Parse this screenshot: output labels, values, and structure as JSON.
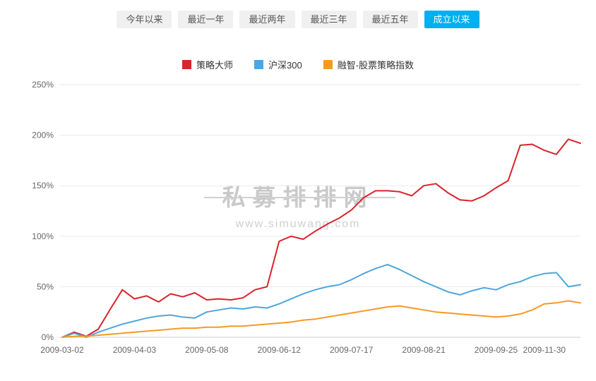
{
  "tabs": {
    "items": [
      {
        "key": "ytd",
        "label": "今年以来",
        "active": false
      },
      {
        "key": "1y",
        "label": "最近一年",
        "active": false
      },
      {
        "key": "2y",
        "label": "最近两年",
        "active": false
      },
      {
        "key": "3y",
        "label": "最近三年",
        "active": false
      },
      {
        "key": "5y",
        "label": "最近五年",
        "active": false
      },
      {
        "key": "inception",
        "label": "成立以来",
        "active": true
      }
    ],
    "active_color": "#00aff0"
  },
  "watermark": {
    "title": "私募排排网",
    "url": "www.simuwang.com"
  },
  "chart_data": {
    "type": "line",
    "title": "",
    "xlabel": "",
    "ylabel": "",
    "ylim": [
      0,
      250
    ],
    "grid": true,
    "legend_position": "top",
    "y_ticks": [
      "0%",
      "50%",
      "100%",
      "150%",
      "200%",
      "250%"
    ],
    "x_tick_labels": [
      "2009-03-02",
      "2009-04-03",
      "2009-05-08",
      "2009-06-12",
      "2009-07-17",
      "2009-08-21",
      "2009-09-25",
      "2009-11-30"
    ],
    "x_tick_indices": [
      0,
      6,
      12,
      18,
      24,
      30,
      36,
      40
    ],
    "unit": "percent",
    "series": [
      {
        "name": "策略大师",
        "color": "#d9232d",
        "values": [
          0,
          5,
          1,
          8,
          28,
          47,
          38,
          41,
          35,
          43,
          40,
          44,
          37,
          38,
          37,
          39,
          47,
          50,
          95,
          100,
          97,
          105,
          112,
          118,
          126,
          138,
          145,
          145,
          144,
          140,
          150,
          152,
          143,
          136,
          135,
          140,
          148,
          155,
          190,
          191,
          185,
          181,
          196,
          192
        ]
      },
      {
        "name": "沪深300",
        "color": "#4ea6dd",
        "values": [
          0,
          4,
          0,
          5,
          9,
          13,
          16,
          19,
          21,
          22,
          20,
          19,
          25,
          27,
          29,
          28,
          30,
          29,
          33,
          38,
          43,
          47,
          50,
          52,
          57,
          63,
          68,
          72,
          67,
          61,
          55,
          50,
          45,
          42,
          46,
          49,
          47,
          52,
          55,
          60,
          63,
          64,
          50,
          52
        ]
      },
      {
        "name": "融智-股票策略指数",
        "color": "#f59a23",
        "values": [
          0,
          1,
          1,
          2,
          3,
          4,
          5,
          6,
          7,
          8,
          9,
          9,
          10,
          10,
          11,
          11,
          12,
          13,
          14,
          15,
          17,
          18,
          20,
          22,
          24,
          26,
          28,
          30,
          31,
          29,
          27,
          25,
          24,
          23,
          22,
          21,
          20,
          21,
          23,
          27,
          33,
          34,
          36,
          34
        ]
      }
    ]
  }
}
